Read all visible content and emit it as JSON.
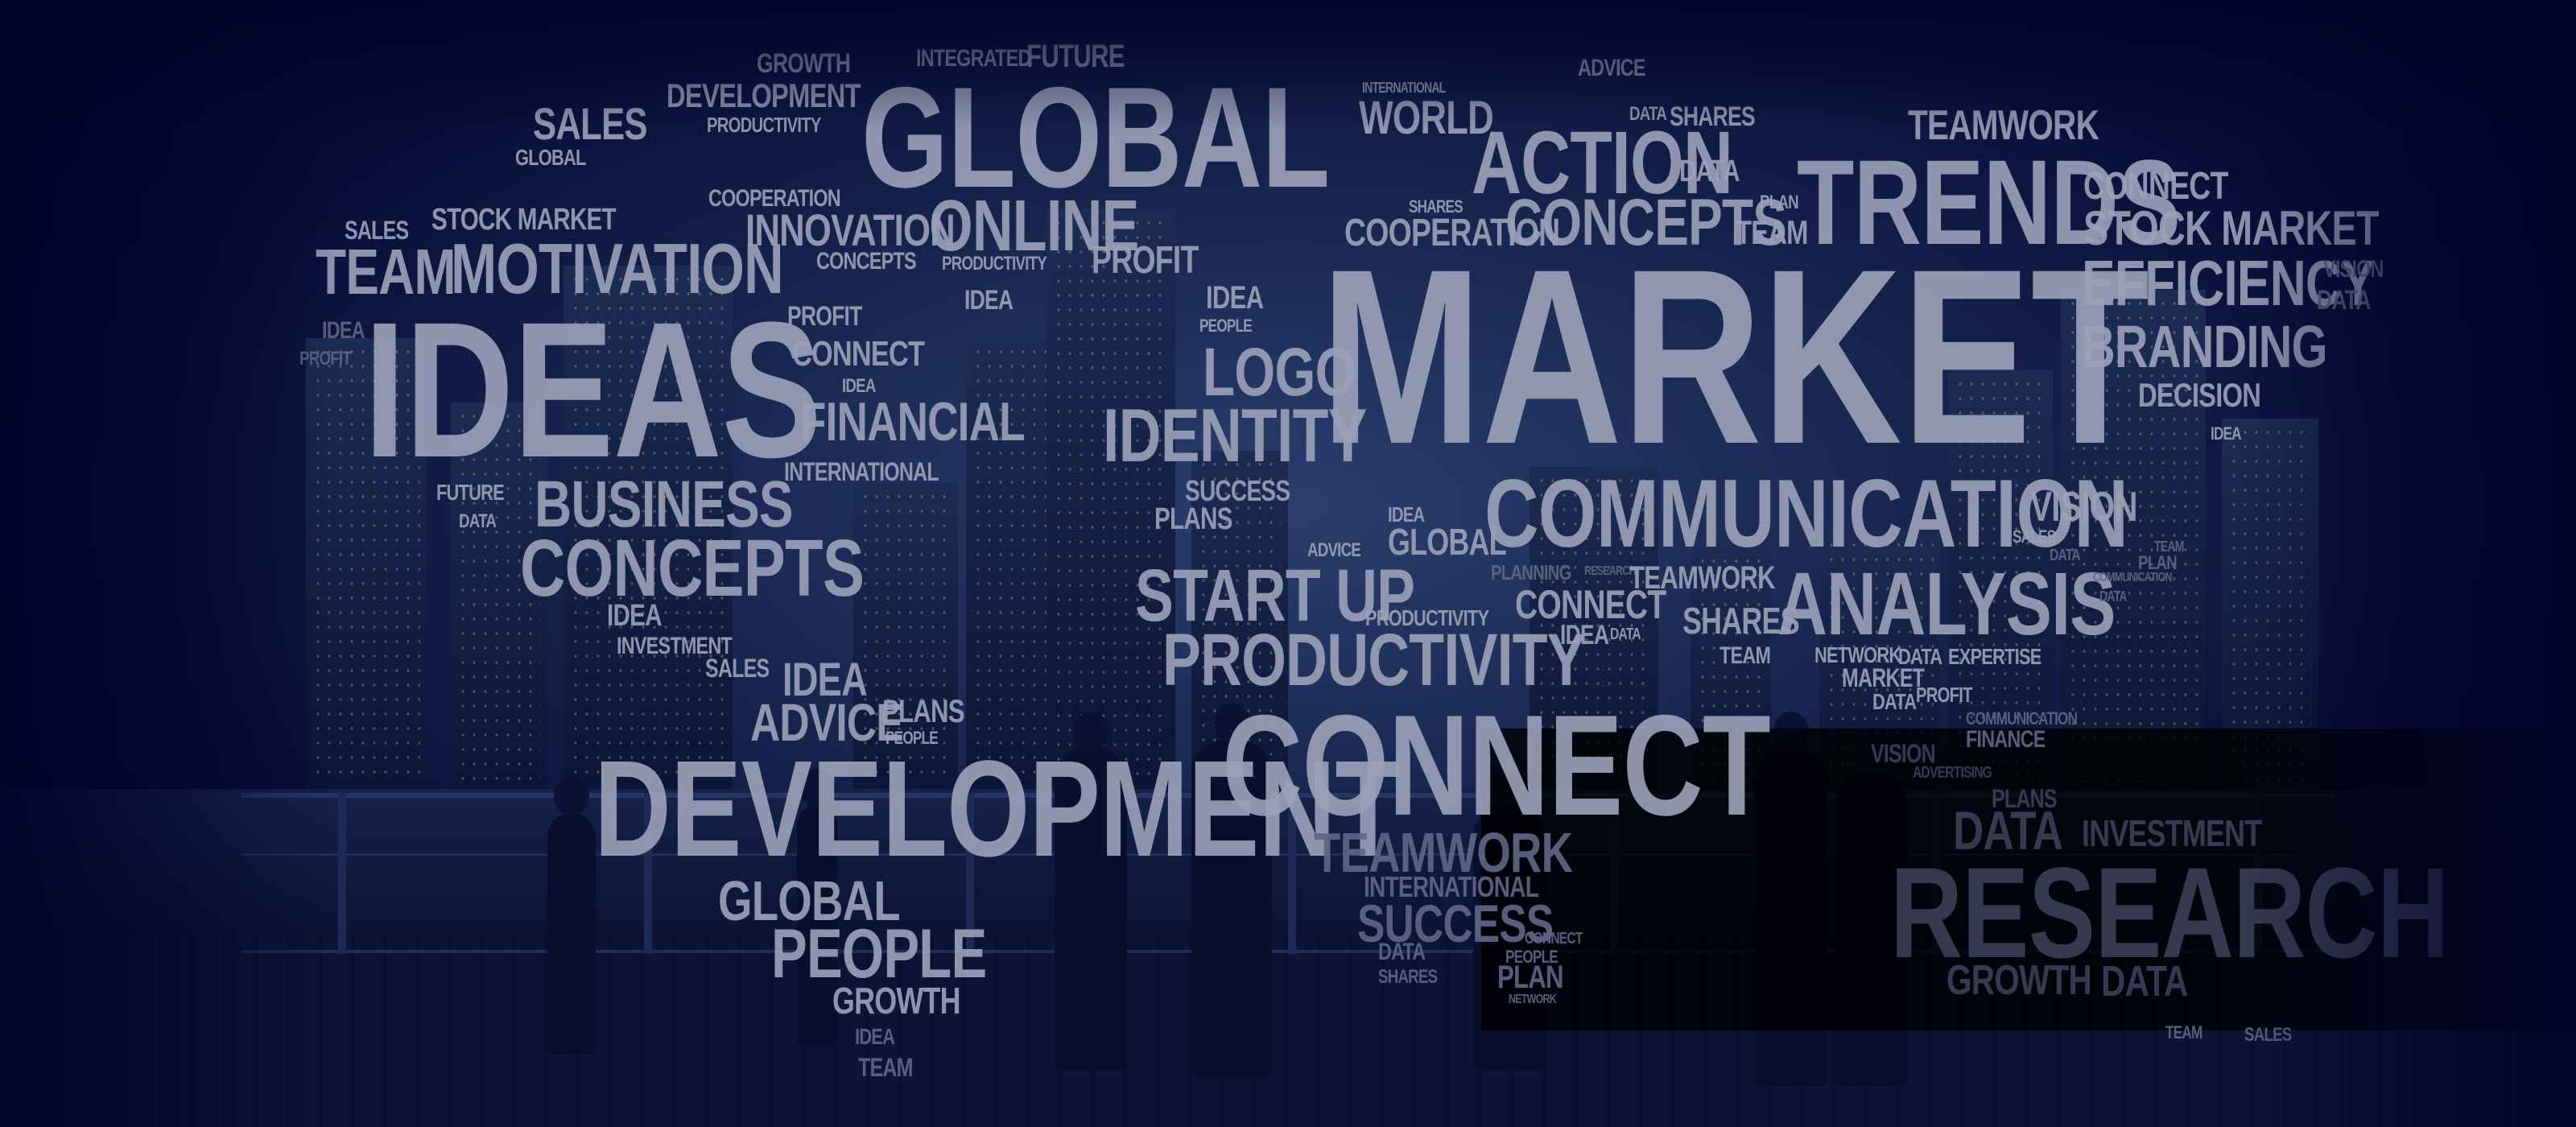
{
  "scene": {
    "description_colors": {
      "background": "#02042a",
      "word": "#9aa0b7",
      "panel": "#000000"
    },
    "words": [
      "GROWTH",
      "INTEGRATED",
      "FUTURE",
      "ADVICE",
      "DEVELOPMENT",
      "SALES",
      "PRODUCTIVITY",
      "GLOBAL",
      "GLOBAL",
      "INTERNATIONAL",
      "WORLD",
      "DATA",
      "SHARES",
      "TEAMWORK",
      "ACTION",
      "DATA",
      "TRENDS",
      "CONNECT",
      "COOPERATION",
      "INNOVATION",
      "SALES",
      "STOCK MARKET",
      "ONLINE",
      "SHARES",
      "PLAN",
      "STOCK MARKET",
      "TEAM",
      "MOTIVATION",
      "CONCEPTS",
      "PRODUCTIVITY",
      "PROFIT",
      "COOPERATION",
      "CONCEPTS",
      "TEAM",
      "EFFICIENCY",
      "VISION",
      "IDEA",
      "PROFIT",
      "IDEA",
      "DATA",
      "IDEAS",
      "IDEA",
      "MARKET",
      "PROFIT",
      "CONNECT",
      "PEOPLE",
      "BRANDING",
      "IDEA",
      "LOGO",
      "FINANCIAL",
      "IDENTITY",
      "DECISION",
      "INTERNATIONAL",
      "IDEA",
      "FUTURE",
      "BUSINESS",
      "SUCCESS",
      "DATA",
      "PLANS",
      "COMMUNICATION",
      "VISION",
      "IDEA",
      "SALES",
      "CONCEPTS",
      "GLOBAL",
      "DATA",
      "ADVICE",
      "TEAM",
      "PLANNING",
      "RESEARCH",
      "TEAMWORK",
      "ANALYSIS",
      "PLAN",
      "IDEA",
      "START UP",
      "CONNECT",
      "COMMUNICATION",
      "INVESTMENT",
      "PRODUCTIVITY",
      "SHARES",
      "DATA",
      "IDEA",
      "DATA",
      "TEAM",
      "NETWORK",
      "DATA",
      "EXPERTISE",
      "PRODUCTIVITY",
      "MARKET",
      "SALES",
      "IDEA",
      "DATA",
      "PROFIT",
      "ADVICE",
      "PLANS",
      "CONNECT",
      "COMMUNICATION",
      "PEOPLE",
      "FINANCE",
      "VISION",
      "ADVERTISING",
      "DEVELOPMENT",
      "PLANS",
      "DATA",
      "INVESTMENT",
      "TEAMWORK",
      "INTERNATIONAL",
      "GLOBAL",
      "SUCCESS",
      "RESEARCH",
      "DATA",
      "CONNECT",
      "PEOPLE",
      "PEOPLE",
      "PLAN",
      "SHARES",
      "NETWORK",
      "GROWTH",
      "DATA",
      "GROWTH",
      "IDEA",
      "TEAM",
      "TEAM",
      "SALES"
    ]
  }
}
